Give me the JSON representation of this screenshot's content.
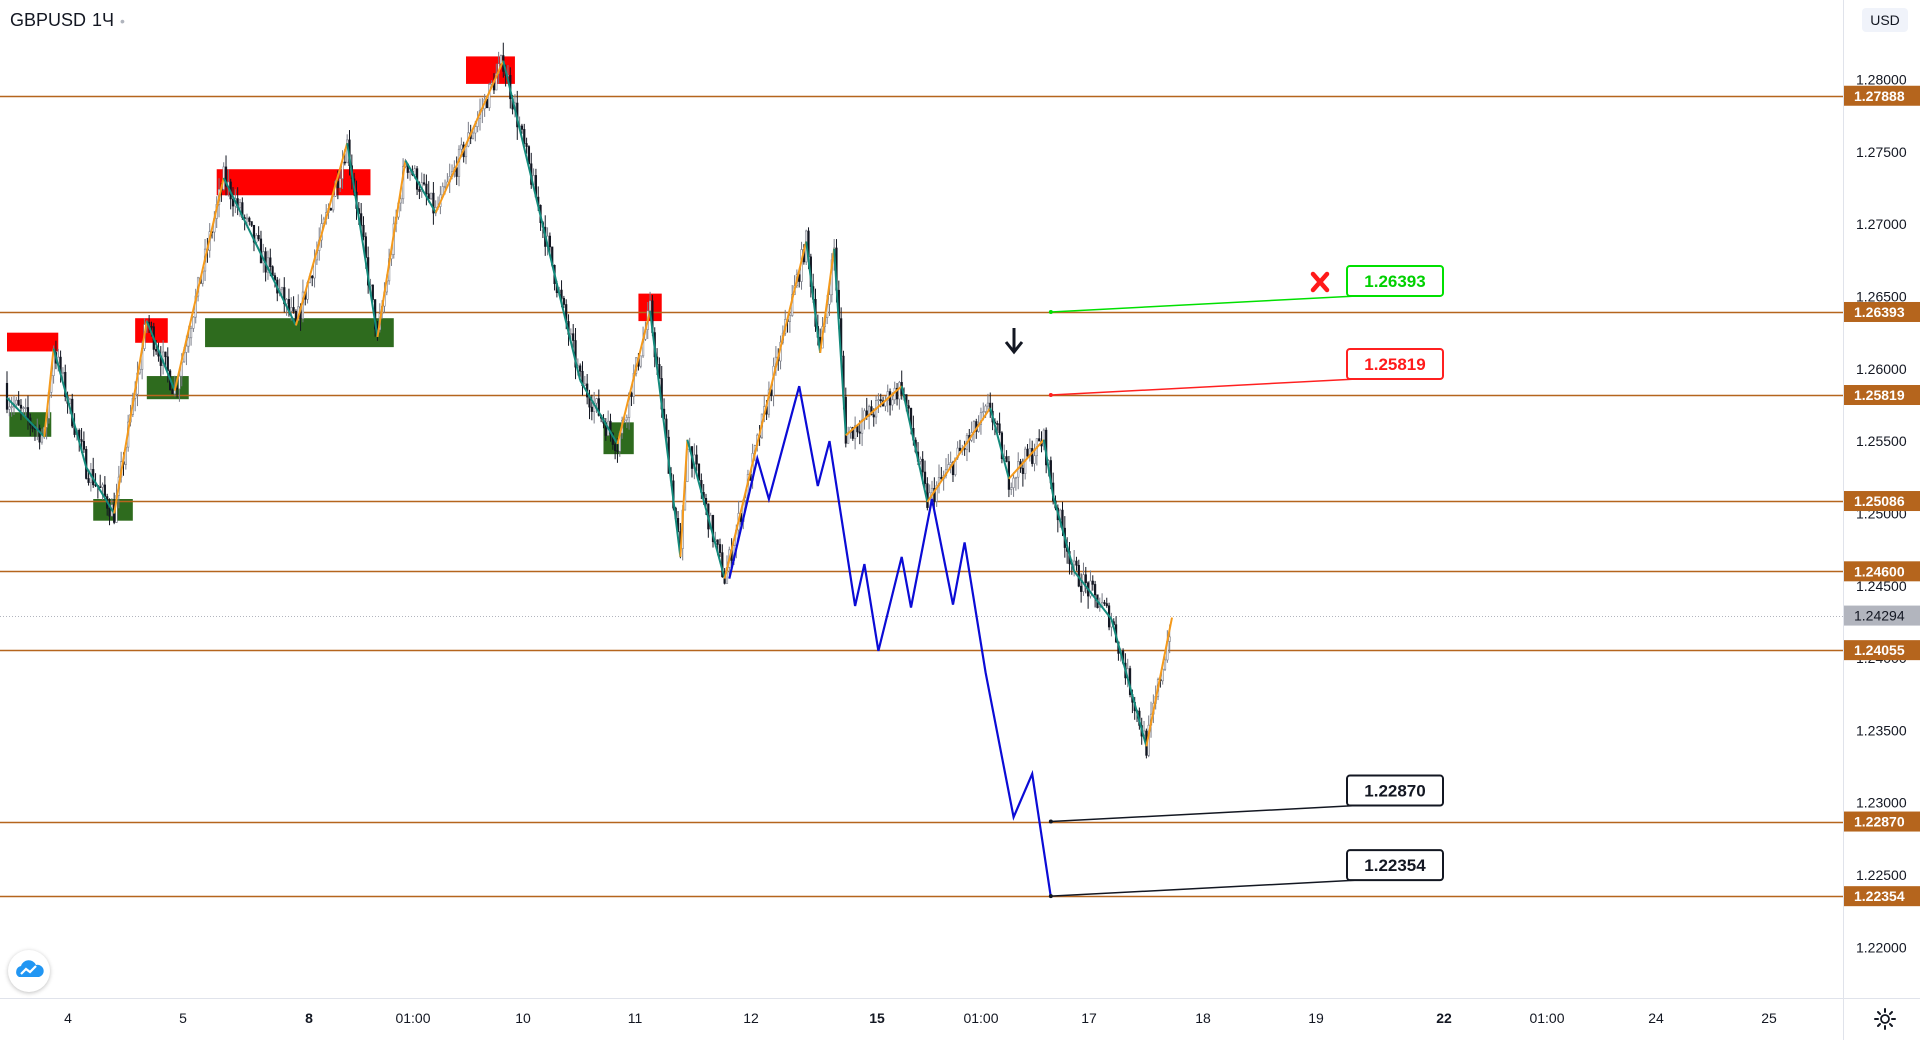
{
  "symbol": "GBPUSD",
  "timeframe": "1Ч",
  "currency": "USD",
  "icons": {
    "logo": "tradingview-cloud-icon",
    "settings": "gear-icon",
    "cross": "x-mark-icon",
    "arrow": "down-arrow-icon"
  },
  "colors": {
    "level_line": "#b5651d",
    "bull_candle": "#787b86",
    "bear_candle": "#131722",
    "zigzag_orange": "#f59a1b",
    "zigzag_teal": "#138a7c",
    "projection": "#0b0bd6",
    "supply_zone": "#ff0000",
    "demand_zone": "#2e6b1e",
    "last_price": "#b2b5be"
  },
  "chart_data": {
    "type": "candlestick",
    "instrument": "GBPUSD",
    "interval": "1H",
    "ylim": [
      1.2165,
      1.2855
    ],
    "y_ticks": [
      "1.28000",
      "1.27500",
      "1.27000",
      "1.26500",
      "1.26000",
      "1.25500",
      "1.25000",
      "1.24500",
      "1.24000",
      "1.23500",
      "1.23000",
      "1.22500",
      "1.22000"
    ],
    "x_ticks": [
      "4",
      "5",
      "8",
      "01:00",
      "10",
      "11",
      "12",
      "15",
      "01:00",
      "17",
      "18",
      "19",
      "22",
      "01:00",
      "24",
      "25"
    ],
    "last_price": {
      "value": 1.24294,
      "label": "1.24294"
    },
    "levels": [
      {
        "value": 1.27888,
        "label": "1.27888"
      },
      {
        "value": 1.26393,
        "label": "1.26393"
      },
      {
        "value": 1.25819,
        "label": "1.25819"
      },
      {
        "value": 1.25086,
        "label": "1.25086"
      },
      {
        "value": 1.246,
        "label": "1.24600"
      },
      {
        "value": 1.24055,
        "label": "1.24055"
      },
      {
        "value": 1.2287,
        "label": "1.22870"
      },
      {
        "value": 1.22354,
        "label": "1.22354"
      }
    ],
    "annotations": [
      {
        "text": "1.26393",
        "style": "green",
        "value": 1.26393
      },
      {
        "text": "1.25819",
        "style": "red",
        "value": 1.25819
      },
      {
        "text": "1.22870",
        "style": "black",
        "value": 1.2287
      },
      {
        "text": "1.22354",
        "style": "black",
        "value": 1.22354
      }
    ],
    "zones": [
      {
        "kind": "supply",
        "x": [
          0,
          22
        ],
        "y": [
          1.2612,
          1.2625
        ]
      },
      {
        "kind": "demand",
        "x": [
          1,
          19
        ],
        "y": [
          1.2553,
          1.257
        ]
      },
      {
        "kind": "supply",
        "x": [
          55,
          69
        ],
        "y": [
          1.2618,
          1.2635
        ]
      },
      {
        "kind": "demand",
        "x": [
          60,
          78
        ],
        "y": [
          1.2579,
          1.2595
        ]
      },
      {
        "kind": "demand",
        "x": [
          37,
          54
        ],
        "y": [
          1.2495,
          1.251
        ]
      },
      {
        "kind": "supply",
        "x": [
          90,
          156
        ],
        "y": [
          1.272,
          1.2738
        ]
      },
      {
        "kind": "demand",
        "x": [
          85,
          166
        ],
        "y": [
          1.2615,
          1.2635
        ]
      },
      {
        "kind": "supply",
        "x": [
          197,
          218
        ],
        "y": [
          1.2797,
          1.2816
        ]
      },
      {
        "kind": "supply",
        "x": [
          271,
          281
        ],
        "y": [
          1.2633,
          1.2652
        ]
      },
      {
        "kind": "demand",
        "x": [
          256,
          269
        ],
        "y": [
          1.2541,
          1.2563
        ]
      }
    ],
    "zigzag": [
      [
        0,
        1.258
      ],
      [
        16,
        1.2553
      ],
      [
        20,
        1.2614
      ],
      [
        34,
        1.2532
      ],
      [
        46,
        1.25
      ],
      [
        60,
        1.2633
      ],
      [
        72,
        1.2585
      ],
      [
        93,
        1.2732
      ],
      [
        124,
        1.263
      ],
      [
        146,
        1.2756
      ],
      [
        159,
        1.2622
      ],
      [
        171,
        1.2744
      ],
      [
        184,
        1.2708
      ],
      [
        213,
        1.2813
      ],
      [
        237,
        1.2652
      ],
      [
        246,
        1.2592
      ],
      [
        262,
        1.2548
      ],
      [
        276,
        1.264
      ],
      [
        289,
        1.247
      ],
      [
        292,
        1.2551
      ],
      [
        308,
        1.2455
      ],
      [
        343,
        1.2688
      ],
      [
        349,
        1.2611
      ],
      [
        355,
        1.2683
      ],
      [
        360,
        1.2554
      ],
      [
        384,
        1.2588
      ],
      [
        395,
        1.2508
      ],
      [
        422,
        1.2573
      ],
      [
        430,
        1.2524
      ],
      [
        445,
        1.2551
      ],
      [
        449,
        1.2512
      ],
      [
        458,
        1.246
      ],
      [
        474,
        1.2427
      ],
      [
        489,
        1.2339
      ],
      [
        500,
        1.2428
      ]
    ],
    "projection": [
      [
        310,
        1.2455
      ],
      [
        322,
        1.2538
      ],
      [
        327,
        1.251
      ],
      [
        340,
        1.2588
      ],
      [
        348,
        1.2519
      ],
      [
        353,
        1.255
      ],
      [
        364,
        1.2436
      ],
      [
        368,
        1.2465
      ],
      [
        374,
        1.2405
      ],
      [
        384,
        1.247
      ],
      [
        388,
        1.2435
      ],
      [
        397,
        1.251
      ],
      [
        406,
        1.2437
      ],
      [
        411,
        1.248
      ],
      [
        420,
        1.239
      ],
      [
        432,
        1.229
      ],
      [
        440,
        1.232
      ],
      [
        448,
        1.2235
      ]
    ],
    "candles": {
      "count": 500,
      "start": 1.259,
      "end": 1.2429
    }
  }
}
